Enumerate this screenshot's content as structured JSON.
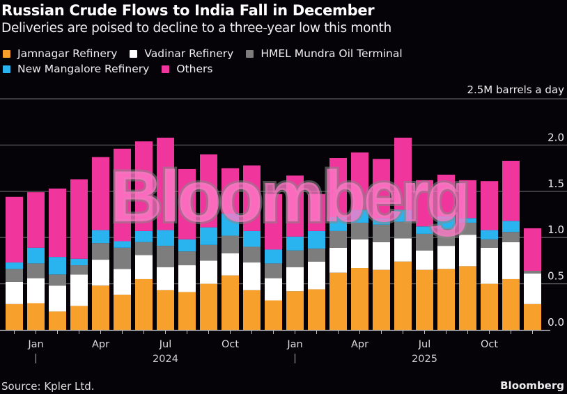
{
  "chart_data": {
    "type": "bar",
    "stacked": true,
    "title": "Russian Crude Flows to India Fall in December",
    "subtitle": "Deliveries are poised to decline to a three-year low this month",
    "unit_label": "2.5M barrels a day",
    "ylabel": "Million barrels a day",
    "ylim": [
      0,
      2.5
    ],
    "yticks": [
      "0.0",
      "0.5",
      "1.0",
      "1.5",
      "2.0"
    ],
    "grid": true,
    "legend_position": "top-left",
    "x": [
      "Dec 2023",
      "Jan 2024",
      "Feb 2024",
      "Mar 2024",
      "Apr 2024",
      "May 2024",
      "Jun 2024",
      "Jul 2024",
      "Aug 2024",
      "Sep 2024",
      "Oct 2024",
      "Nov 2024",
      "Dec 2024",
      "Jan 2025",
      "Feb 2025",
      "Mar 2025",
      "Apr 2025",
      "May 2025",
      "Jun 2025",
      "Jul 2025",
      "Aug 2025",
      "Sep 2025",
      "Oct 2025",
      "Nov 2025",
      "Dec 2025"
    ],
    "xtick_labels": [
      {
        "index": 1,
        "label": "Jan"
      },
      {
        "index": 4,
        "label": "Apr"
      },
      {
        "index": 7,
        "label": "Jul"
      },
      {
        "index": 10,
        "label": "Oct"
      },
      {
        "index": 13,
        "label": "Jan"
      },
      {
        "index": 16,
        "label": "Apr"
      },
      {
        "index": 19,
        "label": "Jul"
      },
      {
        "index": 22,
        "label": "Oct"
      }
    ],
    "year_labels": [
      {
        "index": 7,
        "label": "2024"
      },
      {
        "index": 19,
        "label": "2025"
      }
    ],
    "year_dividers": [
      1,
      13
    ],
    "series": [
      {
        "name": "Jamnagar Refinery",
        "color": "#f7a12c",
        "values": [
          0.28,
          0.29,
          0.2,
          0.26,
          0.48,
          0.38,
          0.55,
          0.43,
          0.41,
          0.5,
          0.59,
          0.43,
          0.32,
          0.42,
          0.44,
          0.62,
          0.67,
          0.65,
          0.74,
          0.65,
          0.66,
          0.69,
          0.5,
          0.55,
          0.28
        ]
      },
      {
        "name": "Vadinar Refinery",
        "color": "#ffffff",
        "values": [
          0.24,
          0.27,
          0.28,
          0.34,
          0.28,
          0.28,
          0.26,
          0.25,
          0.29,
          0.25,
          0.24,
          0.3,
          0.24,
          0.26,
          0.3,
          0.27,
          0.31,
          0.3,
          0.25,
          0.21,
          0.25,
          0.34,
          0.39,
          0.4,
          0.33
        ]
      },
      {
        "name": "HMEL Mundra Oil Terminal",
        "color": "#7d7d7d",
        "values": [
          0.14,
          0.16,
          0.12,
          0.1,
          0.18,
          0.23,
          0.14,
          0.23,
          0.15,
          0.17,
          0.19,
          0.17,
          0.16,
          0.18,
          0.14,
          0.18,
          0.18,
          0.19,
          0.18,
          0.18,
          0.18,
          0.13,
          0.09,
          0.11,
          0.03
        ]
      },
      {
        "name": "New Mangalore Refinery",
        "color": "#2ab4ef",
        "values": [
          0.07,
          0.17,
          0.19,
          0.07,
          0.14,
          0.07,
          0.12,
          0.17,
          0.13,
          0.19,
          0.24,
          0.17,
          0.15,
          0.15,
          0.19,
          0.15,
          0.14,
          0.07,
          0.13,
          0.08,
          0.14,
          0.05,
          0.1,
          0.12,
          0.0
        ]
      },
      {
        "name": "Others",
        "color": "#f0359d",
        "values": [
          0.71,
          0.6,
          0.74,
          0.86,
          0.79,
          1.0,
          0.97,
          1.0,
          0.76,
          0.79,
          0.49,
          0.71,
          0.6,
          0.66,
          0.4,
          0.64,
          0.62,
          0.64,
          0.78,
          0.5,
          0.45,
          0.41,
          0.53,
          0.65,
          0.46
        ]
      }
    ]
  },
  "legend": {
    "rows": [
      [
        {
          "label": "Jamnagar Refinery",
          "color": "#f7a12c"
        },
        {
          "label": "Vadinar Refinery",
          "color": "#ffffff"
        },
        {
          "label": "HMEL Mundra Oil Terminal",
          "color": "#7d7d7d"
        }
      ],
      [
        {
          "label": "New Mangalore Refinery",
          "color": "#2ab4ef"
        },
        {
          "label": "Others",
          "color": "#f0359d"
        }
      ]
    ]
  },
  "watermark": "Bloomberg",
  "footer": {
    "source": "Source: Kpler Ltd.",
    "brand": "Bloomberg"
  }
}
